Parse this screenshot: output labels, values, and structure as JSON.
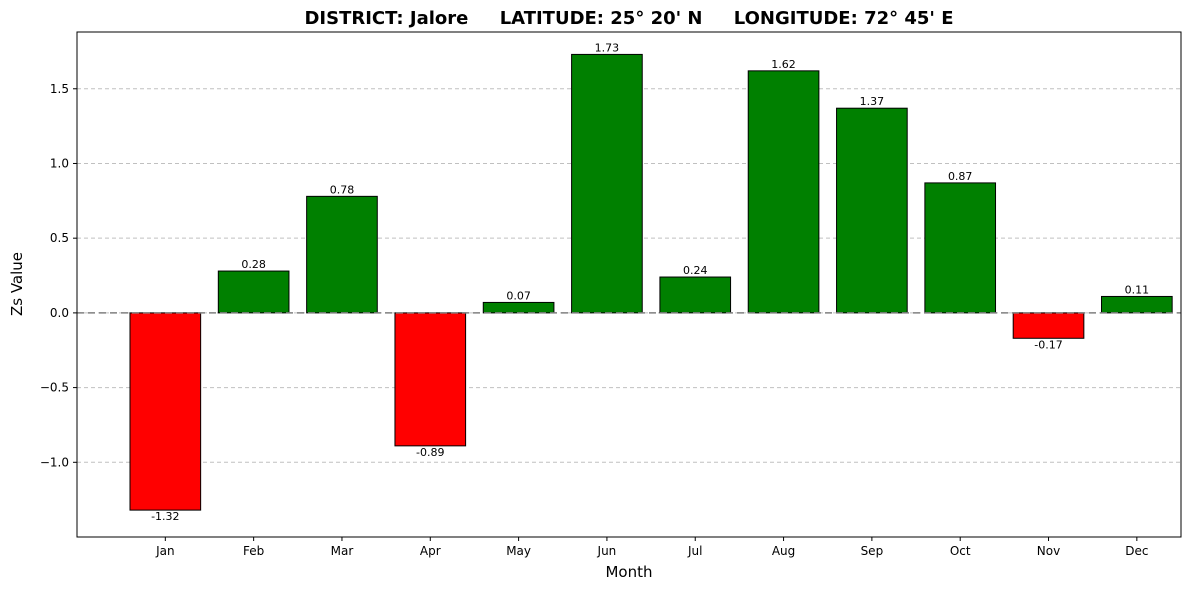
{
  "chart_data": {
    "type": "bar",
    "title": "DISTRICT: Jalore     LATITUDE: 25° 20' N     LONGITUDE: 72° 45' E",
    "xlabel": "Month",
    "ylabel": "Zs Value",
    "categories": [
      "Jan",
      "Feb",
      "Mar",
      "Apr",
      "May",
      "Jun",
      "Jul",
      "Aug",
      "Sep",
      "Oct",
      "Nov",
      "Dec"
    ],
    "values": [
      -1.32,
      0.28,
      0.78,
      -0.89,
      0.07,
      1.73,
      0.24,
      1.62,
      1.37,
      0.87,
      -0.17,
      0.11
    ],
    "data_labels": [
      "-1.32",
      "0.28",
      "0.78",
      "-0.89",
      "0.07",
      "1.73",
      "0.24",
      "1.62",
      "1.37",
      "0.87",
      "-0.17",
      "0.11"
    ],
    "ylim": [
      -1.5,
      1.88
    ],
    "yticks": [
      -1.0,
      -0.5,
      0.0,
      0.5,
      1.0,
      1.5
    ],
    "ytick_labels": [
      "−1.0",
      "−0.5",
      "0.0",
      "0.5",
      "1.0",
      "1.5"
    ],
    "grid": "y-dashed",
    "zero_line": true,
    "colors": {
      "positive": "#008000",
      "negative": "#ff0000",
      "edge": "#000000",
      "grid": "#c0c0c0",
      "zero_line": "#808080"
    }
  }
}
